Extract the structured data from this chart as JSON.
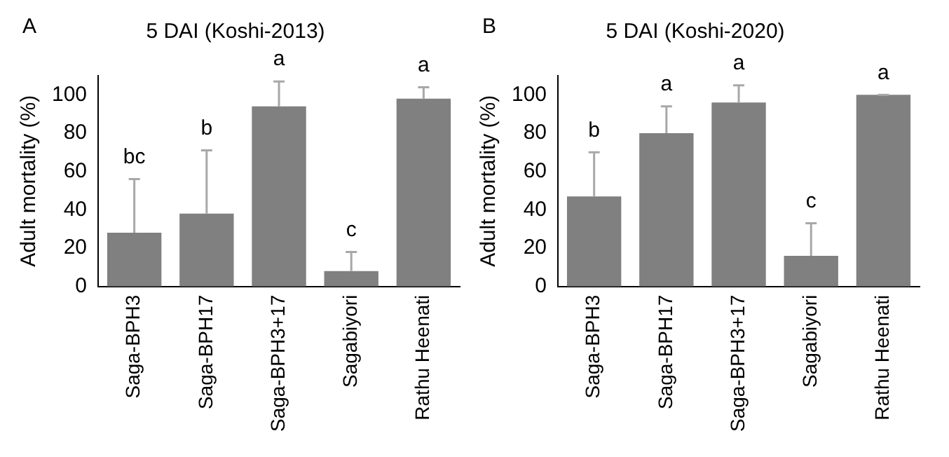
{
  "chart_data": [
    {
      "type": "bar",
      "title": "5 DAI (Koshi-2013)",
      "ylabel": "Adult mortality (%)",
      "categories": [
        "Saga-BPH3",
        "Saga-BPH17",
        "Saga-BPH3+17",
        "Sagabiyori",
        "Rathu Heenati"
      ],
      "values": [
        28,
        38,
        94,
        8,
        98
      ],
      "color": "#808080",
      "errors": [
        [
          28,
          56
        ],
        [
          38,
          71
        ],
        [
          94,
          107
        ],
        [
          8,
          18
        ],
        [
          98,
          104
        ]
      ],
      "ylim": [
        0,
        110
      ],
      "yticks": [
        0,
        20,
        40,
        60,
        80,
        100
      ],
      "grid": false,
      "legend": false,
      "annotations": [
        "A",
        "bc",
        "b",
        "a",
        "c",
        "a"
      ]
    },
    {
      "type": "bar",
      "title": "5 DAI (Koshi-2020)",
      "ylabel": "Adult mortality (%)",
      "categories": [
        "Saga-BPH3",
        "Saga-BPH17",
        "Saga-BPH3+17",
        "Sagabiyori",
        "Rathu Heenati"
      ],
      "values": [
        47,
        80,
        96,
        16,
        100
      ],
      "color": "#808080",
      "errors": [
        [
          47,
          70
        ],
        [
          80,
          94
        ],
        [
          96,
          105
        ],
        [
          16,
          33
        ],
        [
          100,
          100
        ]
      ],
      "ylim": [
        0,
        110
      ],
      "yticks": [
        0,
        20,
        40,
        60,
        80,
        100
      ],
      "grid": false,
      "legend": false,
      "annotations": [
        "B",
        "b",
        "a",
        "a",
        "c",
        "a"
      ]
    }
  ]
}
